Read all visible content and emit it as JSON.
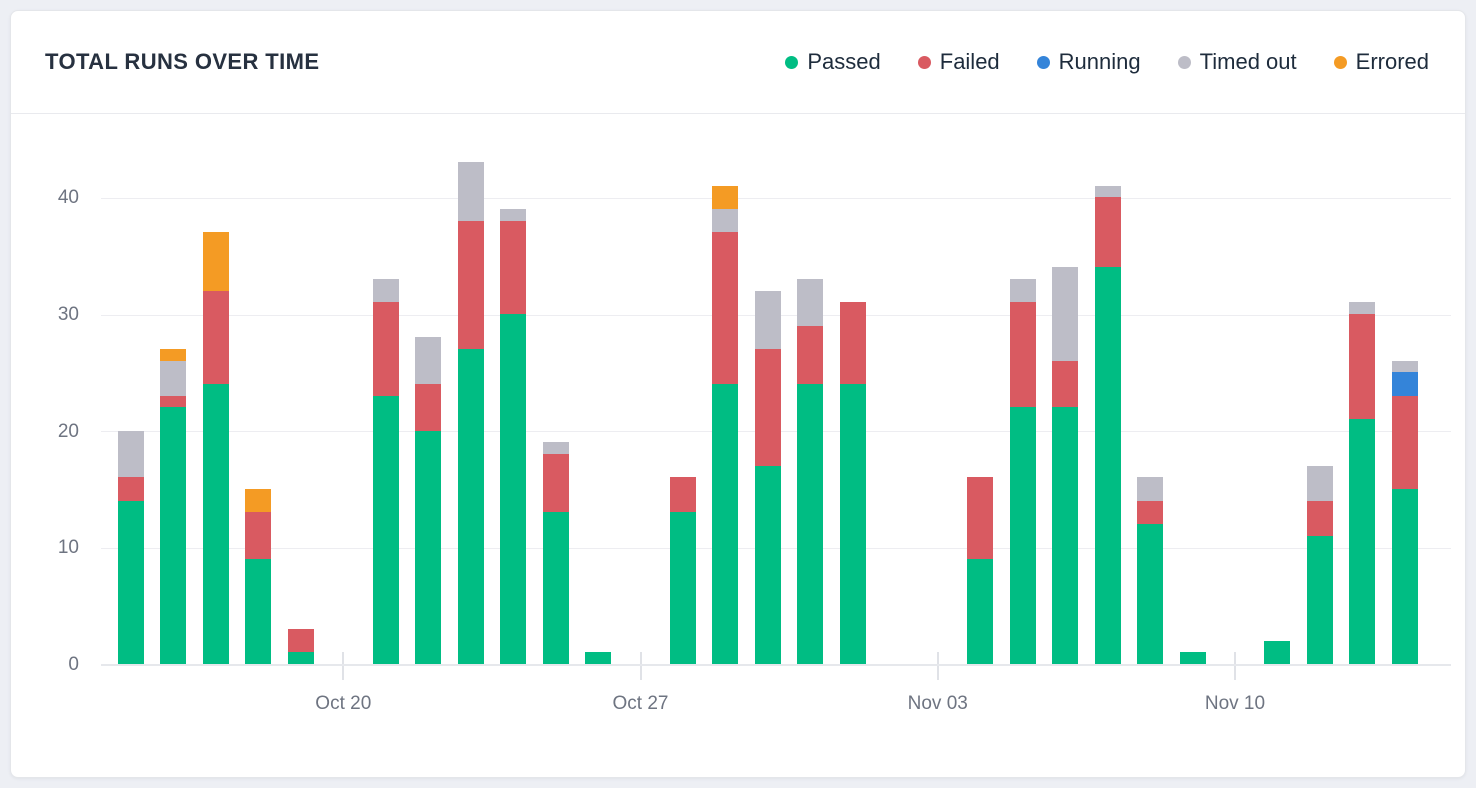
{
  "card": {
    "title": "TOTAL RUNS OVER TIME"
  },
  "legend": [
    {
      "label": "Passed",
      "color": "#00bd83"
    },
    {
      "label": "Failed",
      "color": "#d95a61"
    },
    {
      "label": "Running",
      "color": "#3484d9"
    },
    {
      "label": "Timed out",
      "color": "#bdbdc7"
    },
    {
      "label": "Errored",
      "color": "#f49b24"
    }
  ],
  "chart_data": {
    "type": "bar",
    "stacked": true,
    "title": "TOTAL RUNS OVER TIME",
    "xlabel": "",
    "ylabel": "",
    "ylim": [
      0,
      45
    ],
    "y_ticks": [
      0,
      10,
      20,
      30,
      40
    ],
    "grid": "horizontal",
    "legend_position": "top-right",
    "categories": [
      "Oct 15",
      "Oct 16",
      "Oct 17",
      "Oct 18",
      "Oct 19",
      "Oct 20",
      "Oct 21",
      "Oct 22",
      "Oct 23",
      "Oct 24",
      "Oct 25",
      "Oct 26",
      "Oct 27",
      "Oct 28",
      "Oct 29",
      "Oct 30",
      "Oct 31",
      "Nov 01",
      "Nov 02",
      "Nov 03",
      "Nov 04",
      "Nov 05",
      "Nov 06",
      "Nov 07",
      "Nov 08",
      "Nov 09",
      "Nov 10",
      "Nov 11",
      "Nov 12",
      "Nov 13",
      "Nov 14"
    ],
    "x_tick_labels": [
      "Oct 20",
      "Oct 27",
      "Nov 03",
      "Nov 10"
    ],
    "x_tick_indices": [
      5,
      12,
      19,
      26
    ],
    "series": [
      {
        "name": "Passed",
        "color": "#00bd83",
        "values": [
          14,
          22,
          24,
          9,
          1,
          0,
          23,
          20,
          27,
          30,
          13,
          1,
          0,
          13,
          24,
          17,
          24,
          24,
          0,
          0,
          9,
          22,
          22,
          34,
          12,
          1,
          0,
          2,
          11,
          21,
          15
        ]
      },
      {
        "name": "Failed",
        "color": "#d95a61",
        "values": [
          2,
          1,
          8,
          4,
          2,
          0,
          8,
          4,
          11,
          8,
          5,
          0,
          0,
          3,
          13,
          10,
          5,
          7,
          0,
          0,
          7,
          9,
          4,
          6,
          2,
          0,
          0,
          0,
          3,
          9,
          8
        ]
      },
      {
        "name": "Running",
        "color": "#3484d9",
        "values": [
          0,
          0,
          0,
          0,
          0,
          0,
          0,
          0,
          0,
          0,
          0,
          0,
          0,
          0,
          0,
          0,
          0,
          0,
          0,
          0,
          0,
          0,
          0,
          0,
          0,
          0,
          0,
          0,
          0,
          0,
          2
        ]
      },
      {
        "name": "Timed out",
        "color": "#bdbdc7",
        "values": [
          4,
          3,
          0,
          0,
          0,
          0,
          2,
          4,
          5,
          1,
          1,
          0,
          0,
          0,
          2,
          5,
          4,
          0,
          0,
          0,
          0,
          2,
          8,
          1,
          2,
          0,
          0,
          0,
          3,
          1,
          1
        ]
      },
      {
        "name": "Errored",
        "color": "#f49b24",
        "values": [
          0,
          1,
          5,
          2,
          0,
          0,
          0,
          0,
          0,
          0,
          0,
          0,
          0,
          0,
          2,
          0,
          0,
          0,
          0,
          0,
          0,
          0,
          0,
          0,
          0,
          0,
          0,
          0,
          0,
          0,
          0
        ]
      }
    ],
    "totals": [
      20,
      27,
      37,
      15,
      3,
      0,
      33,
      28,
      43,
      39,
      19,
      1,
      0,
      16,
      41,
      32,
      33,
      31,
      0,
      0,
      16,
      33,
      34,
      41,
      16,
      1,
      0,
      2,
      17,
      31,
      26
    ]
  }
}
